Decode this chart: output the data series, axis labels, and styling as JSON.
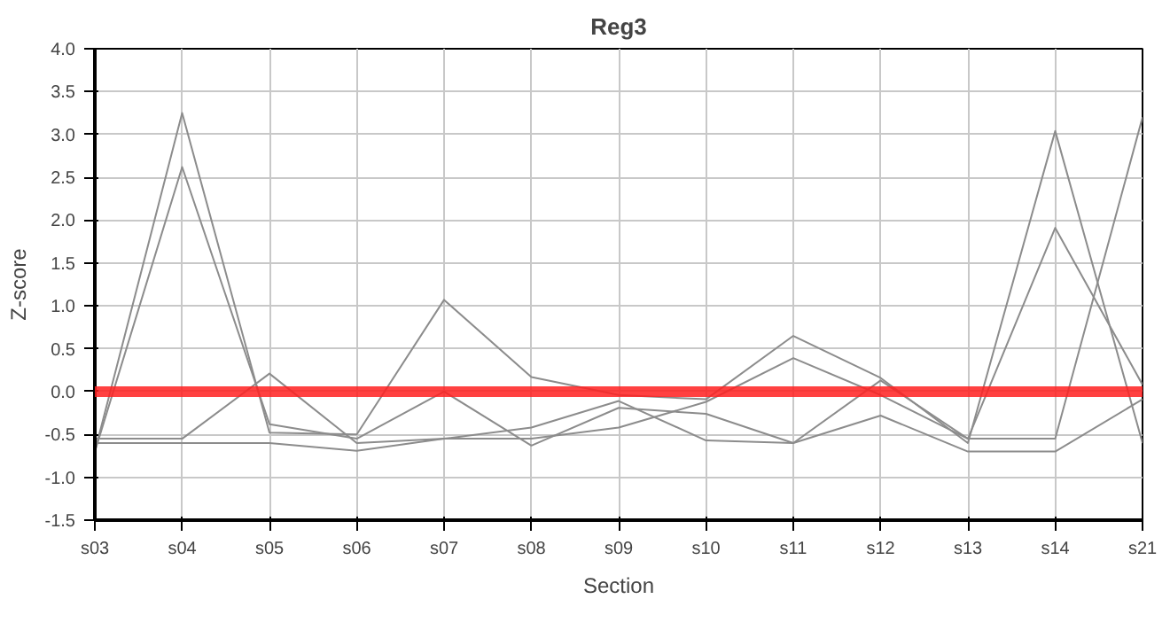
{
  "chart_data": {
    "type": "line",
    "title": "Reg3",
    "xlabel": "Section",
    "ylabel": "Z-score",
    "categories": [
      "s03",
      "s04",
      "s05",
      "s06",
      "s07",
      "s08",
      "s09",
      "s10",
      "s11",
      "s12",
      "s13",
      "s14",
      "s21"
    ],
    "series": [
      {
        "color": "#8c8c8c",
        "values": [
          -0.7,
          3.25,
          -0.48,
          -0.5,
          1.07,
          0.17,
          -0.04,
          -0.09,
          0.65,
          0.16,
          -0.6,
          3.04,
          -0.6
        ]
      },
      {
        "color": "#8c8c8c",
        "values": [
          -0.7,
          2.62,
          -0.38,
          -0.55,
          0.0,
          -0.63,
          -0.19,
          -0.26,
          -0.6,
          0.13,
          -0.55,
          1.91,
          0.08
        ]
      },
      {
        "color": "#8c8c8c",
        "values": [
          -0.55,
          -0.55,
          0.21,
          -0.6,
          -0.55,
          -0.55,
          -0.42,
          -0.12,
          0.39,
          -0.04,
          -0.55,
          -0.55,
          3.2
        ]
      },
      {
        "color": "#8c8c8c",
        "values": [
          -0.6,
          -0.6,
          -0.6,
          -0.69,
          -0.55,
          -0.42,
          -0.11,
          -0.57,
          -0.6,
          -0.28,
          -0.7,
          -0.7,
          -0.09
        ]
      }
    ],
    "ylim": [
      -1.5,
      4.0
    ],
    "yticks": [
      {
        "value": -1.5,
        "label": "-1.5"
      },
      {
        "value": -1.0,
        "label": "-1.0"
      },
      {
        "value": -0.5,
        "label": "-0.5"
      },
      {
        "value": 0,
        "label": "0.0"
      },
      {
        "value": 0.5,
        "label": "0.5"
      },
      {
        "value": 1.0,
        "label": "1.0"
      },
      {
        "value": 1.5,
        "label": "1.5"
      },
      {
        "value": 2.0,
        "label": "2.0"
      },
      {
        "value": 2.5,
        "label": "2.5"
      },
      {
        "value": 3.0,
        "label": "3.0"
      },
      {
        "value": 3.5,
        "label": "3.5"
      },
      {
        "value": 4.0,
        "label": "4.0"
      }
    ],
    "ref_lines": [
      {
        "axis": "y",
        "value": 0,
        "color": "#ff2020"
      }
    ],
    "grid": true,
    "marker": "none",
    "line_style": "solid"
  }
}
